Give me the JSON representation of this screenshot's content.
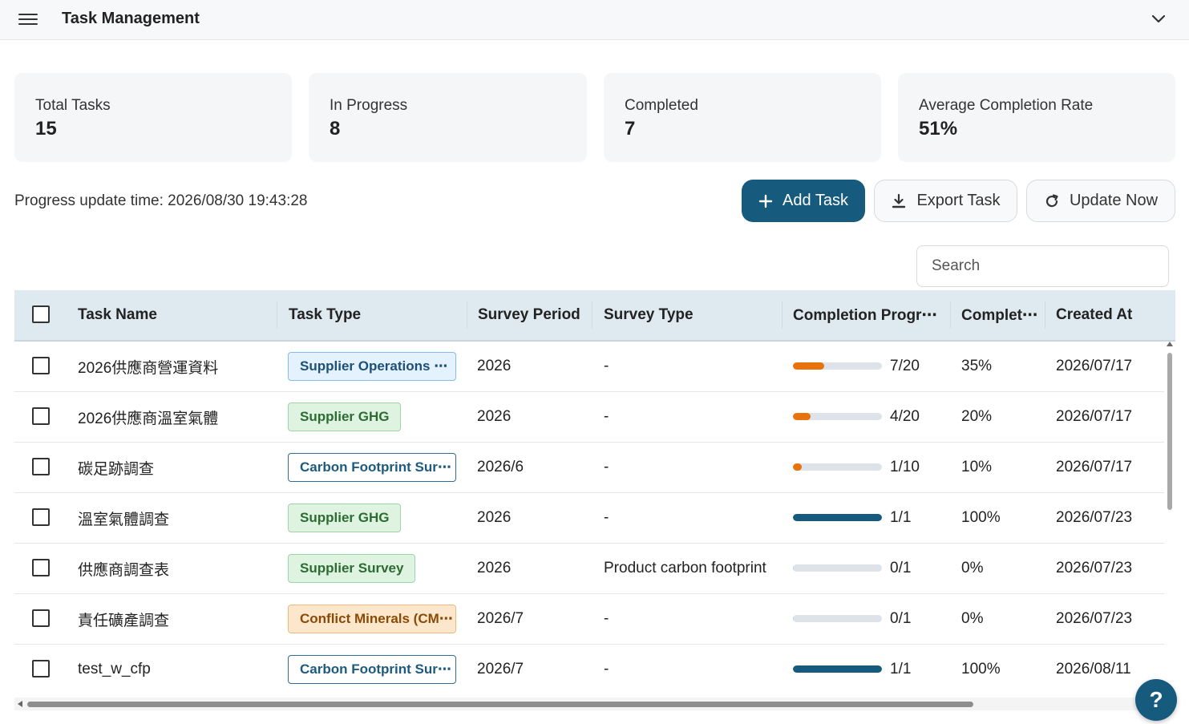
{
  "header": {
    "title": "Task Management"
  },
  "stats": [
    {
      "label": "Total Tasks",
      "value": "15"
    },
    {
      "label": "In Progress",
      "value": "8"
    },
    {
      "label": "Completed",
      "value": "7"
    },
    {
      "label": "Average Completion Rate",
      "value": "51%"
    }
  ],
  "toolbar": {
    "update_time": "Progress update time: 2026/08/30 19:43:28",
    "add_label": "Add Task",
    "export_label": "Export Task",
    "update_label": "Update Now"
  },
  "search": {
    "placeholder": "Search"
  },
  "table": {
    "columns": [
      "Task Name",
      "Task Type",
      "Survey Period",
      "Survey Type",
      "Completion Progr⋯",
      "Complet⋯",
      "Created At"
    ],
    "rows": [
      {
        "name": "2026供應商營運資料",
        "type": "Supplier Operations ⋯",
        "type_style": "blue",
        "period": "2026",
        "survey_type": "-",
        "progress": "7/20",
        "fraction": 0.35,
        "rate": "35%",
        "created": "2026/07/17"
      },
      {
        "name": "2026供應商溫室氣體",
        "type": "Supplier GHG",
        "type_style": "green",
        "period": "2026",
        "survey_type": "-",
        "progress": "4/20",
        "fraction": 0.2,
        "rate": "20%",
        "created": "2026/07/17"
      },
      {
        "name": "碳足跡調查",
        "type": "Carbon Footprint Sur⋯",
        "type_style": "outline",
        "period": "2026/6",
        "survey_type": "-",
        "progress": "1/10",
        "fraction": 0.1,
        "rate": "10%",
        "created": "2026/07/17"
      },
      {
        "name": "溫室氣體調查",
        "type": "Supplier GHG",
        "type_style": "green",
        "period": "2026",
        "survey_type": "-",
        "progress": "1/1",
        "fraction": 1.0,
        "rate": "100%",
        "created": "2026/07/23"
      },
      {
        "name": "供應商調查表",
        "type": "Supplier Survey",
        "type_style": "green",
        "period": "2026",
        "survey_type": "Product carbon footprint",
        "progress": "0/1",
        "fraction": 0.0,
        "rate": "0%",
        "created": "2026/07/23"
      },
      {
        "name": "責任礦產調查",
        "type": "Conflict Minerals (CM⋯",
        "type_style": "orange",
        "period": "2026/7",
        "survey_type": "-",
        "progress": "0/1",
        "fraction": 0.0,
        "rate": "0%",
        "created": "2026/07/23"
      },
      {
        "name": "test_w_cfp",
        "type": "Carbon Footprint Sur⋯",
        "type_style": "outline",
        "period": "2026/7",
        "survey_type": "-",
        "progress": "1/1",
        "fraction": 1.0,
        "rate": "100%",
        "created": "2026/08/11"
      }
    ]
  },
  "colors": {
    "primary": "#165a7d",
    "progress_partial": "#e8730c",
    "progress_complete": "#165a7d",
    "track": "#dde3e8"
  },
  "help": {
    "label": "?"
  }
}
